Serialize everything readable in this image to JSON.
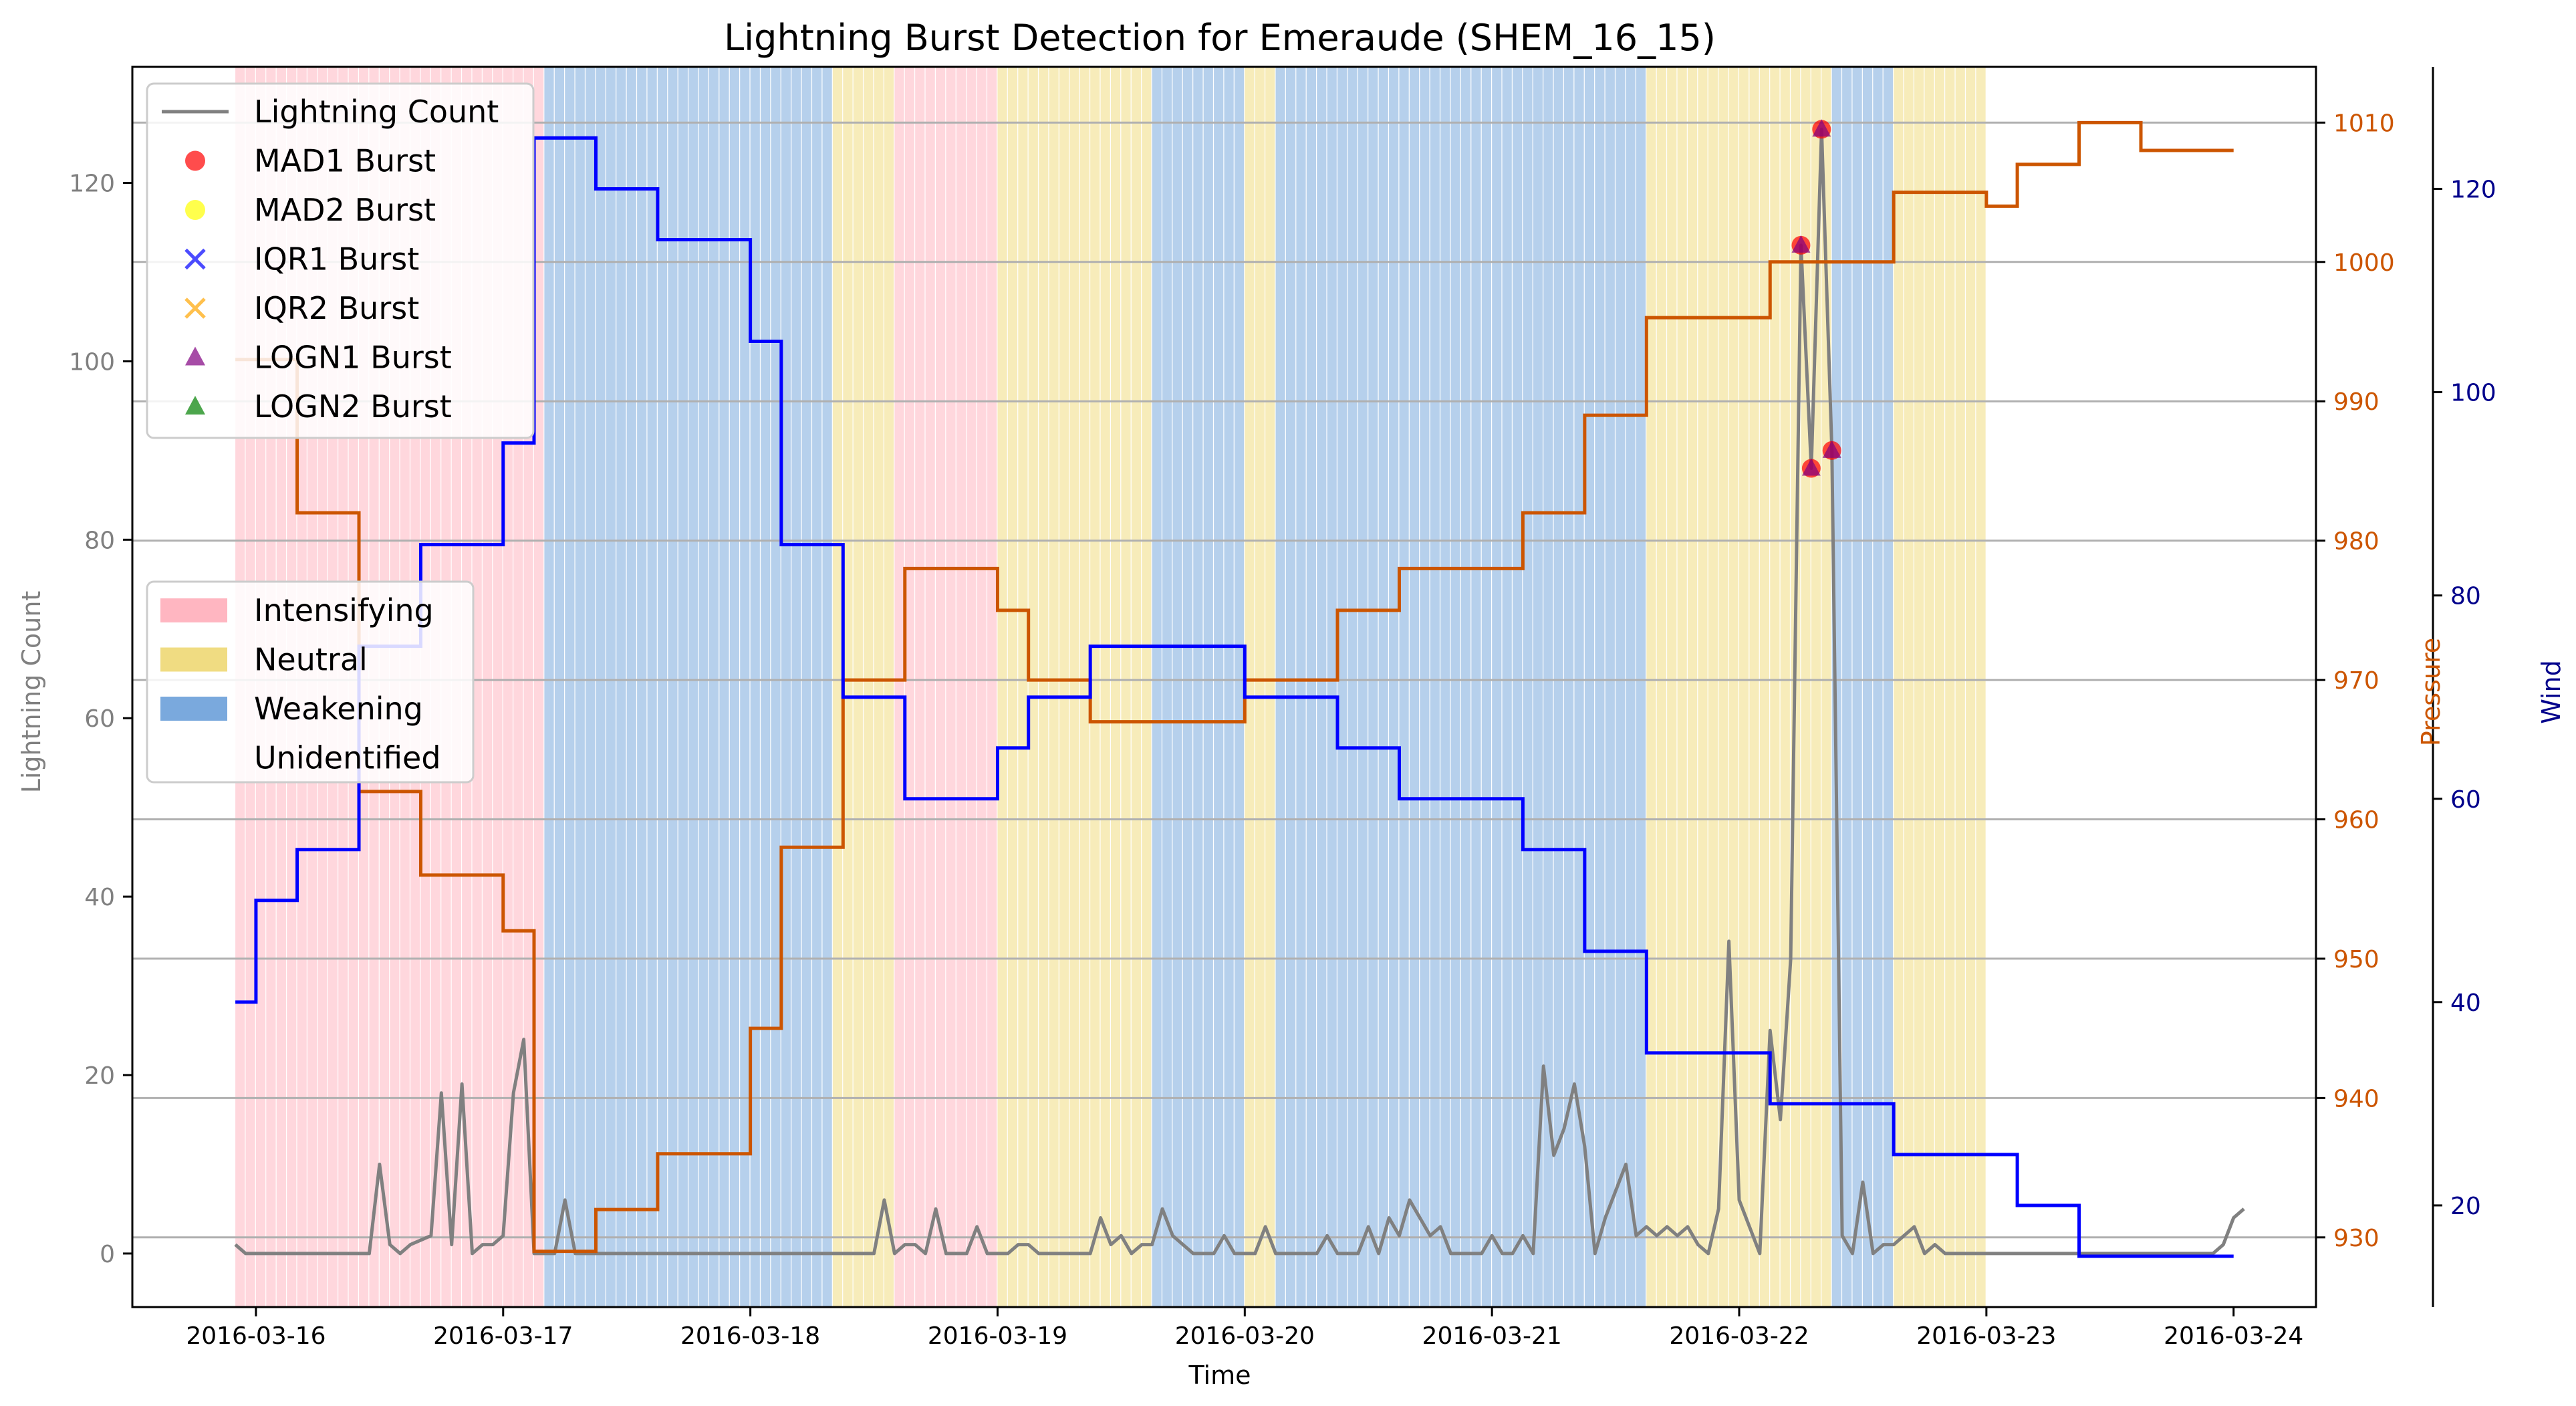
{
  "chart_data": {
    "type": "line",
    "title": "Lightning Burst Detection for Emeraude (SHEM_16_15)",
    "xlabel": "Time",
    "ylabel": "Lightning Count",
    "y2label": "Pressure",
    "y3label": "Wind",
    "x_range": [
      "2016-03-15 12:00",
      "2016-03-24 08:00"
    ],
    "ylim": [
      -6,
      133
    ],
    "y2lim": [
      925,
      1014
    ],
    "y3lim": [
      10,
      132
    ],
    "x_ticks": [
      "2016-03-16",
      "2016-03-17",
      "2016-03-18",
      "2016-03-19",
      "2016-03-20",
      "2016-03-21",
      "2016-03-22",
      "2016-03-23",
      "2016-03-24"
    ],
    "y_ticks": [
      0,
      20,
      40,
      60,
      80,
      100,
      120
    ],
    "y2_ticks": [
      930,
      940,
      950,
      960,
      970,
      980,
      990,
      1000,
      1010
    ],
    "y3_ticks": [
      20,
      40,
      60,
      80,
      100,
      120
    ],
    "grid": "horizontal lines",
    "legend_main_position": "upper-left",
    "legend_phase_position": "center-left",
    "colors": {
      "lightning": "#808080",
      "pressure": "#cc5500",
      "wind": "#0000ff",
      "intensifying": "#ffb6c1",
      "neutral": "#f0dc82",
      "weakening": "#7aa9dd",
      "pressure_axis": "#cc5500",
      "wind_axis": "#00008b",
      "grid": "#b0b0b0"
    },
    "legend_main": [
      {
        "label": "Lightning Count",
        "marker": "line",
        "color": "#808080"
      },
      {
        "label": "MAD1 Burst",
        "marker": "circle",
        "color": "#ff0000"
      },
      {
        "label": "MAD2 Burst",
        "marker": "circle",
        "color": "#ffff00"
      },
      {
        "label": "IQR1 Burst",
        "marker": "x",
        "color": "#0000ff"
      },
      {
        "label": "IQR2 Burst",
        "marker": "x",
        "color": "#ffa500"
      },
      {
        "label": "LOGN1 Burst",
        "marker": "triangle",
        "color": "#800080"
      },
      {
        "label": "LOGN2 Burst",
        "marker": "triangle",
        "color": "#008000"
      }
    ],
    "legend_phase": [
      {
        "label": "Intensifying",
        "color": "#ffb6c1"
      },
      {
        "label": "Neutral",
        "color": "#f0dc82"
      },
      {
        "label": "Weakening",
        "color": "#7aa9dd"
      },
      {
        "label": "Unidentified",
        "color": "#ffffff"
      }
    ],
    "phase_periods": [
      {
        "phase": "Intensifying",
        "start": "2016-03-15 22:00",
        "end": "2016-03-17 04:00"
      },
      {
        "phase": "Weakening",
        "start": "2016-03-17 04:00",
        "end": "2016-03-18 08:00"
      },
      {
        "phase": "Neutral",
        "start": "2016-03-18 08:00",
        "end": "2016-03-18 14:00"
      },
      {
        "phase": "Intensifying",
        "start": "2016-03-18 14:00",
        "end": "2016-03-19 00:00"
      },
      {
        "phase": "Neutral",
        "start": "2016-03-19 00:00",
        "end": "2016-03-19 15:00"
      },
      {
        "phase": "Weakening",
        "start": "2016-03-19 15:00",
        "end": "2016-03-20 00:00"
      },
      {
        "phase": "Neutral",
        "start": "2016-03-20 00:00",
        "end": "2016-03-20 03:00"
      },
      {
        "phase": "Weakening",
        "start": "2016-03-20 03:00",
        "end": "2016-03-21 15:00"
      },
      {
        "phase": "Neutral",
        "start": "2016-03-21 15:00",
        "end": "2016-03-22 09:00"
      },
      {
        "phase": "Weakening",
        "start": "2016-03-22 09:00",
        "end": "2016-03-22 15:00"
      },
      {
        "phase": "Neutral",
        "start": "2016-03-22 15:00",
        "end": "2016-03-23 00:00"
      }
    ],
    "pressure_steps": [
      [
        "2016-03-15 22:00",
        993
      ],
      [
        "2016-03-16 04:00",
        982
      ],
      [
        "2016-03-16 10:00",
        962
      ],
      [
        "2016-03-16 16:00",
        956
      ],
      [
        "2016-03-17 00:00",
        952
      ],
      [
        "2016-03-17 03:00",
        929
      ],
      [
        "2016-03-17 09:00",
        932
      ],
      [
        "2016-03-17 15:00",
        936
      ],
      [
        "2016-03-18 00:00",
        945
      ],
      [
        "2016-03-18 03:00",
        958
      ],
      [
        "2016-03-18 09:00",
        970
      ],
      [
        "2016-03-18 15:00",
        978
      ],
      [
        "2016-03-19 00:00",
        975
      ],
      [
        "2016-03-19 03:00",
        970
      ],
      [
        "2016-03-19 09:00",
        967
      ],
      [
        "2016-03-20 00:00",
        970
      ],
      [
        "2016-03-20 09:00",
        975
      ],
      [
        "2016-03-20 15:00",
        978
      ],
      [
        "2016-03-21 03:00",
        982
      ],
      [
        "2016-03-21 09:00",
        989
      ],
      [
        "2016-03-21 15:00",
        996
      ],
      [
        "2016-03-22 03:00",
        1000
      ],
      [
        "2016-03-22 15:00",
        1005
      ],
      [
        "2016-03-23 00:00",
        1004
      ],
      [
        "2016-03-23 03:00",
        1007
      ],
      [
        "2016-03-23 09:00",
        1010
      ],
      [
        "2016-03-23 15:00",
        1008
      ],
      [
        "2016-03-24 00:00",
        1008
      ]
    ],
    "wind_steps": [
      [
        "2016-03-15 22:00",
        40
      ],
      [
        "2016-03-16 00:00",
        50
      ],
      [
        "2016-03-16 04:00",
        55
      ],
      [
        "2016-03-16 10:00",
        75
      ],
      [
        "2016-03-16 16:00",
        85
      ],
      [
        "2016-03-17 00:00",
        95
      ],
      [
        "2016-03-17 03:00",
        125
      ],
      [
        "2016-03-17 09:00",
        120
      ],
      [
        "2016-03-17 15:00",
        115
      ],
      [
        "2016-03-18 00:00",
        105
      ],
      [
        "2016-03-18 03:00",
        85
      ],
      [
        "2016-03-18 09:00",
        70
      ],
      [
        "2016-03-18 15:00",
        60
      ],
      [
        "2016-03-19 00:00",
        65
      ],
      [
        "2016-03-19 03:00",
        70
      ],
      [
        "2016-03-19 09:00",
        75
      ],
      [
        "2016-03-20 00:00",
        70
      ],
      [
        "2016-03-20 09:00",
        65
      ],
      [
        "2016-03-20 15:00",
        60
      ],
      [
        "2016-03-21 03:00",
        55
      ],
      [
        "2016-03-21 09:00",
        45
      ],
      [
        "2016-03-21 15:00",
        35
      ],
      [
        "2016-03-22 03:00",
        30
      ],
      [
        "2016-03-22 15:00",
        25
      ],
      [
        "2016-03-23 03:00",
        20
      ],
      [
        "2016-03-23 09:00",
        15
      ],
      [
        "2016-03-24 00:00",
        15
      ]
    ],
    "lightning": [
      [
        "2016-03-15 22:00",
        1
      ],
      [
        "2016-03-15 23:00",
        0
      ],
      [
        "2016-03-16 11:00",
        0
      ],
      [
        "2016-03-16 12:00",
        10
      ],
      [
        "2016-03-16 13:00",
        1
      ],
      [
        "2016-03-16 14:00",
        0
      ],
      [
        "2016-03-16 15:00",
        1
      ],
      [
        "2016-03-16 17:00",
        2
      ],
      [
        "2016-03-16 18:00",
        18
      ],
      [
        "2016-03-16 19:00",
        1
      ],
      [
        "2016-03-16 20:00",
        19
      ],
      [
        "2016-03-16 21:00",
        0
      ],
      [
        "2016-03-16 22:00",
        1
      ],
      [
        "2016-03-16 23:00",
        1
      ],
      [
        "2016-03-17 00:00",
        2
      ],
      [
        "2016-03-17 01:00",
        18
      ],
      [
        "2016-03-17 02:00",
        24
      ],
      [
        "2016-03-17 03:00",
        0
      ],
      [
        "2016-03-17 05:00",
        0
      ],
      [
        "2016-03-17 06:00",
        6
      ],
      [
        "2016-03-17 07:00",
        0
      ],
      [
        "2016-03-18 12:00",
        0
      ],
      [
        "2016-03-18 13:00",
        6
      ],
      [
        "2016-03-18 14:00",
        0
      ],
      [
        "2016-03-18 15:00",
        1
      ],
      [
        "2016-03-18 16:00",
        1
      ],
      [
        "2016-03-18 17:00",
        0
      ],
      [
        "2016-03-18 18:00",
        5
      ],
      [
        "2016-03-18 19:00",
        0
      ],
      [
        "2016-03-18 21:00",
        0
      ],
      [
        "2016-03-18 22:00",
        3
      ],
      [
        "2016-03-18 23:00",
        0
      ],
      [
        "2016-03-19 01:00",
        0
      ],
      [
        "2016-03-19 02:00",
        1
      ],
      [
        "2016-03-19 03:00",
        1
      ],
      [
        "2016-03-19 04:00",
        0
      ],
      [
        "2016-03-19 06:00",
        0
      ],
      [
        "2016-03-19 09:00",
        0
      ],
      [
        "2016-03-19 10:00",
        4
      ],
      [
        "2016-03-19 11:00",
        1
      ],
      [
        "2016-03-19 12:00",
        2
      ],
      [
        "2016-03-19 13:00",
        0
      ],
      [
        "2016-03-19 14:00",
        1
      ],
      [
        "2016-03-19 15:00",
        1
      ],
      [
        "2016-03-19 16:00",
        5
      ],
      [
        "2016-03-19 17:00",
        2
      ],
      [
        "2016-03-19 18:00",
        1
      ],
      [
        "2016-03-19 19:00",
        0
      ],
      [
        "2016-03-19 21:00",
        0
      ],
      [
        "2016-03-19 22:00",
        2
      ],
      [
        "2016-03-19 23:00",
        0
      ],
      [
        "2016-03-20 01:00",
        0
      ],
      [
        "2016-03-20 02:00",
        3
      ],
      [
        "2016-03-20 03:00",
        0
      ],
      [
        "2016-03-20 07:00",
        0
      ],
      [
        "2016-03-20 08:00",
        2
      ],
      [
        "2016-03-20 09:00",
        0
      ],
      [
        "2016-03-20 11:00",
        0
      ],
      [
        "2016-03-20 12:00",
        3
      ],
      [
        "2016-03-20 13:00",
        0
      ],
      [
        "2016-03-20 14:00",
        4
      ],
      [
        "2016-03-20 15:00",
        2
      ],
      [
        "2016-03-20 16:00",
        6
      ],
      [
        "2016-03-20 17:00",
        4
      ],
      [
        "2016-03-20 18:00",
        2
      ],
      [
        "2016-03-20 19:00",
        3
      ],
      [
        "2016-03-20 20:00",
        0
      ],
      [
        "2016-03-20 23:00",
        0
      ],
      [
        "2016-03-21 00:00",
        2
      ],
      [
        "2016-03-21 01:00",
        0
      ],
      [
        "2016-03-21 02:00",
        0
      ],
      [
        "2016-03-21 03:00",
        2
      ],
      [
        "2016-03-21 04:00",
        0
      ],
      [
        "2016-03-21 05:00",
        21
      ],
      [
        "2016-03-21 06:00",
        11
      ],
      [
        "2016-03-21 07:00",
        14
      ],
      [
        "2016-03-21 08:00",
        19
      ],
      [
        "2016-03-21 09:00",
        12
      ],
      [
        "2016-03-21 10:00",
        0
      ],
      [
        "2016-03-21 11:00",
        4
      ],
      [
        "2016-03-21 12:00",
        7
      ],
      [
        "2016-03-21 13:00",
        10
      ],
      [
        "2016-03-21 14:00",
        2
      ],
      [
        "2016-03-21 15:00",
        3
      ],
      [
        "2016-03-21 16:00",
        2
      ],
      [
        "2016-03-21 17:00",
        3
      ],
      [
        "2016-03-21 18:00",
        2
      ],
      [
        "2016-03-21 19:00",
        3
      ],
      [
        "2016-03-21 20:00",
        1
      ],
      [
        "2016-03-21 21:00",
        0
      ],
      [
        "2016-03-21 22:00",
        5
      ],
      [
        "2016-03-21 23:00",
        35
      ],
      [
        "2016-03-22 00:00",
        6
      ],
      [
        "2016-03-22 01:00",
        3
      ],
      [
        "2016-03-22 02:00",
        0
      ],
      [
        "2016-03-22 03:00",
        25
      ],
      [
        "2016-03-22 04:00",
        15
      ],
      [
        "2016-03-22 05:00",
        33
      ],
      [
        "2016-03-22 06:00",
        113
      ],
      [
        "2016-03-22 07:00",
        88
      ],
      [
        "2016-03-22 08:00",
        126
      ],
      [
        "2016-03-22 09:00",
        90
      ],
      [
        "2016-03-22 10:00",
        2
      ],
      [
        "2016-03-22 11:00",
        0
      ],
      [
        "2016-03-22 12:00",
        8
      ],
      [
        "2016-03-22 13:00",
        0
      ],
      [
        "2016-03-22 14:00",
        1
      ],
      [
        "2016-03-22 15:00",
        1
      ],
      [
        "2016-03-22 16:00",
        2
      ],
      [
        "2016-03-22 17:00",
        3
      ],
      [
        "2016-03-22 18:00",
        0
      ],
      [
        "2016-03-22 19:00",
        1
      ],
      [
        "2016-03-22 20:00",
        0
      ],
      [
        "2016-03-23 22:00",
        0
      ],
      [
        "2016-03-23 23:00",
        1
      ],
      [
        "2016-03-24 00:00",
        4
      ],
      [
        "2016-03-24 01:00",
        5
      ]
    ],
    "bursts": [
      {
        "time": "2016-03-22 06:00",
        "value": 113
      },
      {
        "time": "2016-03-22 07:00",
        "value": 88
      },
      {
        "time": "2016-03-22 08:00",
        "value": 126
      },
      {
        "time": "2016-03-22 09:00",
        "value": 90
      }
    ]
  }
}
